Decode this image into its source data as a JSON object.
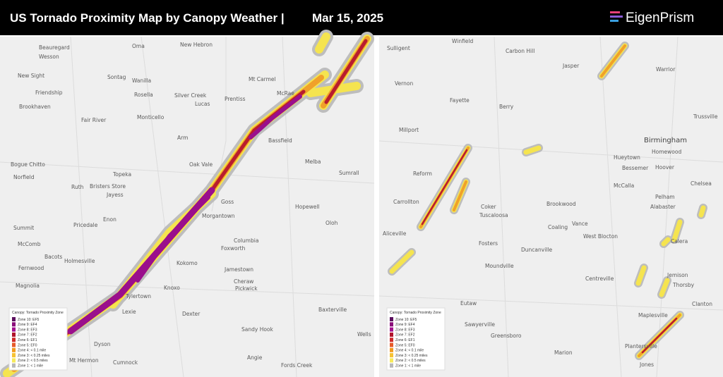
{
  "header": {
    "title": "US Tornado Proximity Map by Canopy Weather |",
    "date": "Mar 15, 2025",
    "logo": "EigenPrism"
  },
  "legend": {
    "title": "Canopy: Tornado Proximity Zone",
    "items": [
      {
        "label": "Zone 10: EF5",
        "color": "#5b0f5e"
      },
      {
        "label": "Zone 9: EF4",
        "color": "#8a0e7a"
      },
      {
        "label": "Zone 8: EF3",
        "color": "#a3128f"
      },
      {
        "label": "Zone 7: EF2",
        "color": "#b0122a"
      },
      {
        "label": "Zone 6: EF1",
        "color": "#cf2a2a"
      },
      {
        "label": "Zone 5: EF0",
        "color": "#e65a2a"
      },
      {
        "label": "Zone 4: < 0.1 mile",
        "color": "#f29a1f"
      },
      {
        "label": "Zone 3: < 0.25 miles",
        "color": "#f6c233"
      },
      {
        "label": "Zone 2: < 0.5 miles",
        "color": "#f7ea5a"
      },
      {
        "label": "Zone 1: < 1 mile",
        "color": "#b8b8b8"
      }
    ]
  },
  "left_map": {
    "places": [
      "Beauregard",
      "Wesson",
      "Oma",
      "New Hebron",
      "New Sight",
      "Sontag",
      "Wanilla",
      "Mt Carmel",
      "Friendship",
      "Rosella",
      "Silver Creek",
      "Prentiss",
      "McRae",
      "Lucas",
      "Brookhaven",
      "Fair River",
      "Monticello",
      "Arm",
      "Bassfield",
      "Bogue Chitto",
      "Oak Vale",
      "Melba",
      "Norfield",
      "Topeka",
      "Sumrall",
      "Ruth",
      "Bristers Store",
      "Jayess",
      "Goss",
      "Hopewell",
      "Summit",
      "Pricedale",
      "Enon",
      "Morgantown",
      "Oloh",
      "McComb",
      "Columbia",
      "Foxworth",
      "Bacots",
      "Holmesville",
      "Kokomo",
      "Fernwood",
      "Jamestown",
      "Magnolia",
      "Cheraw",
      "Knoxo",
      "Pickwick",
      "Tylertown",
      "Lexie",
      "Dexter",
      "Baxterville",
      "Sandy Hook",
      "Dyson",
      "Angie",
      "Mt Hermon",
      "Cumnock",
      "Fords Creek",
      "Wells"
    ]
  },
  "right_map": {
    "places": [
      "Sulligent",
      "Winfield",
      "Carbon Hill",
      "Jasper",
      "Warrior",
      "Vernon",
      "Fayette",
      "Berry",
      "Trussville",
      "Millport",
      "Birmingham",
      "Homewood",
      "Hueytown",
      "Bessemer",
      "Hoover",
      "Reform",
      "McCalla",
      "Chelsea",
      "Pelham",
      "Carrollton",
      "Coker",
      "Brookwood",
      "Alabaster",
      "Tuscaloosa",
      "Vance",
      "Coaling",
      "Aliceville",
      "West Blocton",
      "Calera",
      "Fosters",
      "Duncanville",
      "Moundville",
      "Centreville",
      "Jemison",
      "Thorsby",
      "Eutaw",
      "Clanton",
      "Sawyerville",
      "Maplesville",
      "Greensboro",
      "Marion",
      "Plantersville",
      "Jones"
    ]
  }
}
